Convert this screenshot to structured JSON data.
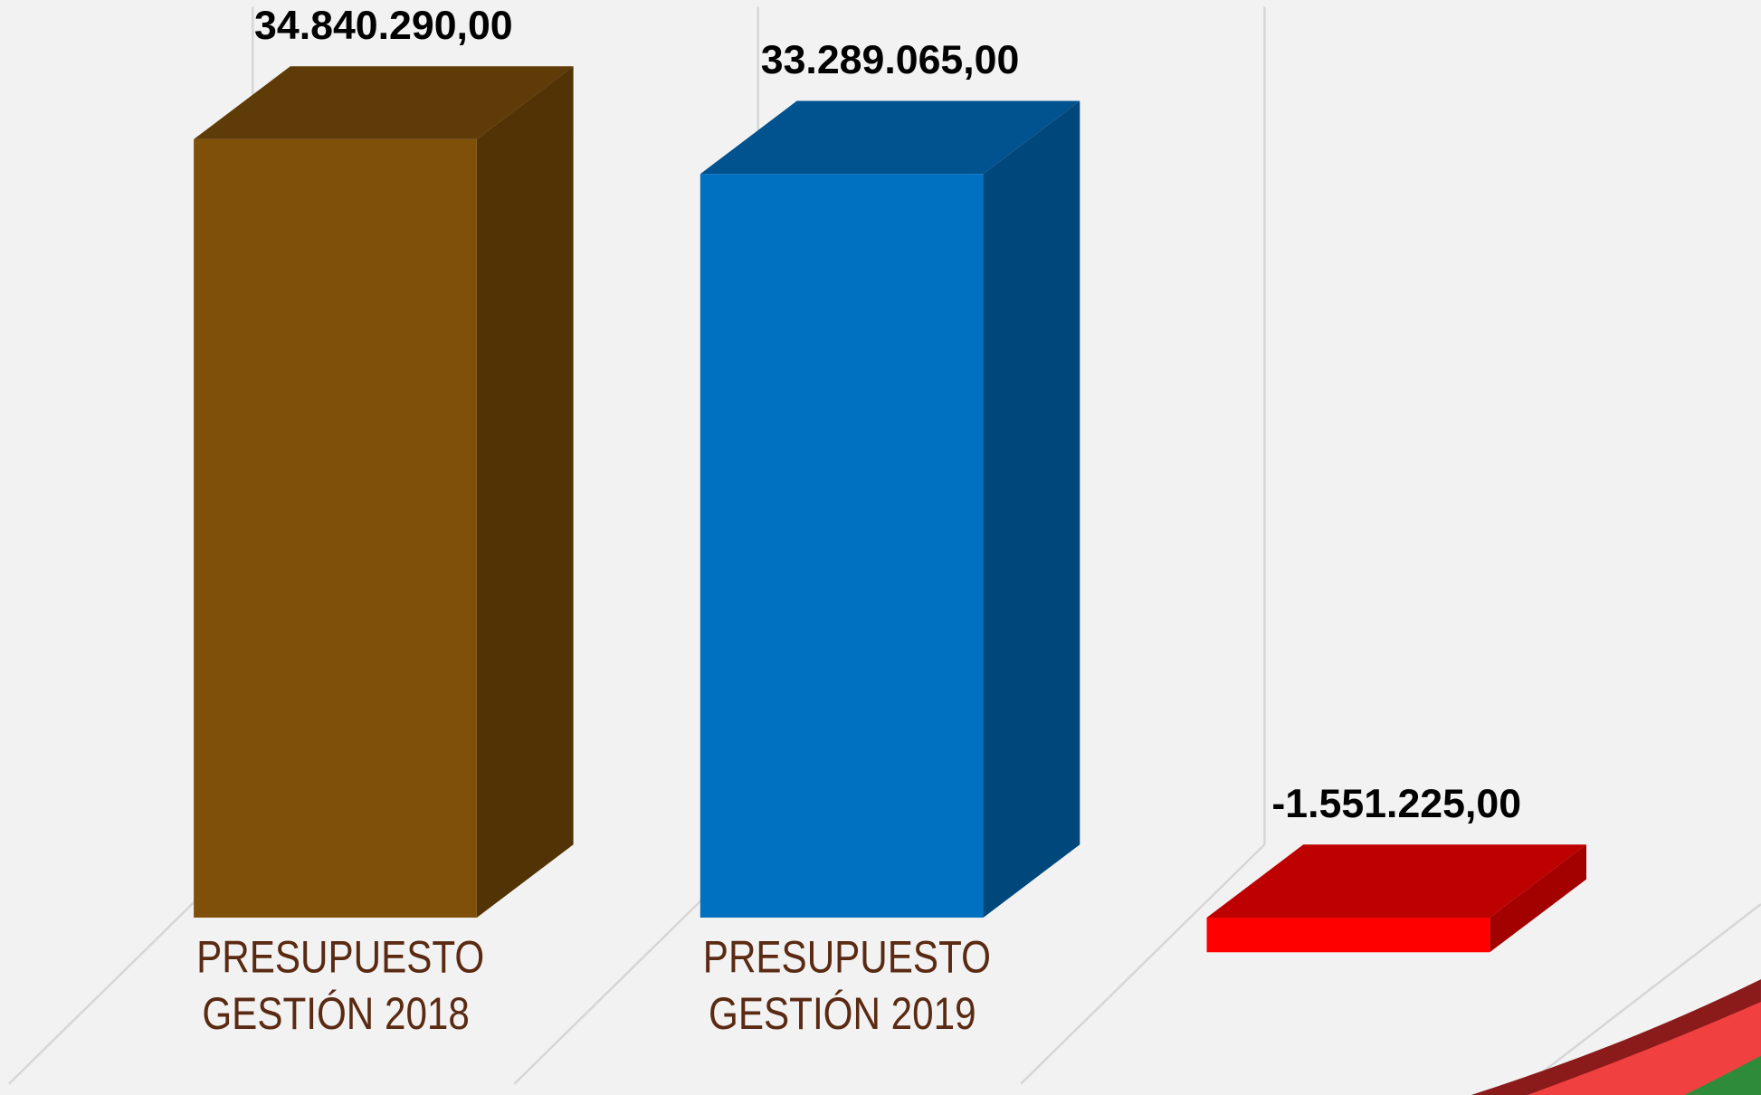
{
  "chart_data": {
    "type": "bar3d",
    "categories": [
      "PRESUPUESTO GESTIÓN 2018",
      "PRESUPUESTO GESTIÓN 2019",
      null
    ],
    "values": [
      34840290,
      33289065,
      -1551225
    ],
    "value_labels": [
      "34.840.290,00",
      "33.289.065,00",
      "-1.551.225,00"
    ],
    "colors": [
      "#7f500a",
      "#0070c0",
      "#ff0000"
    ],
    "ylim": [
      -5000000,
      40000000
    ]
  }
}
